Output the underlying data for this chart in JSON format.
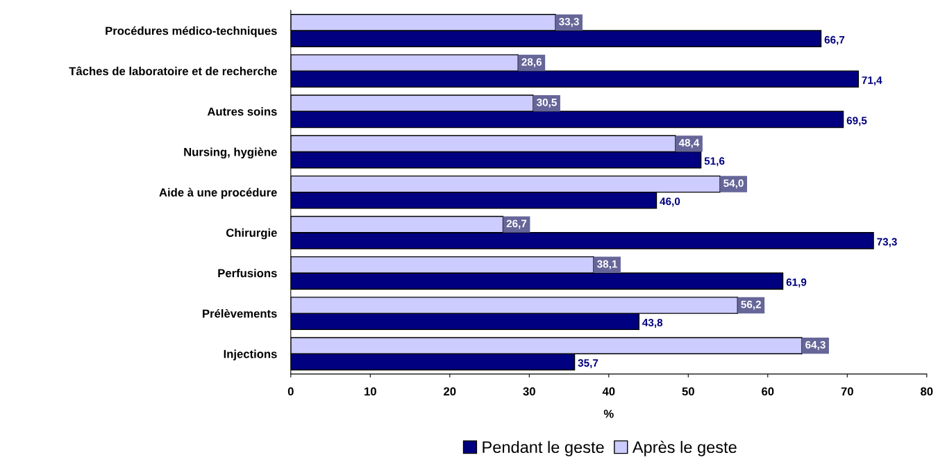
{
  "chart_data": {
    "type": "bar",
    "orientation": "horizontal",
    "xlabel": "%",
    "categories": [
      "Procédures médico-techniques",
      "Tâches de laboratoire et de recherche",
      "Autres soins",
      "Nursing, hygiène",
      "Aide à une procédure",
      "Chirurgie",
      "Perfusions",
      "Prélèvements",
      "Injections"
    ],
    "series": [
      {
        "name": "Pendant le geste",
        "color": "#000080",
        "values": [
          66.7,
          71.4,
          69.5,
          51.6,
          46.0,
          73.3,
          61.9,
          43.8,
          35.7
        ],
        "value_labels": [
          "66,7",
          "71,4",
          "69,5",
          "51,6",
          "46,0",
          "73,3",
          "61,9",
          "43,8",
          "35,7"
        ]
      },
      {
        "name": "Après le geste",
        "color": "#ccccff",
        "values": [
          33.3,
          28.6,
          30.5,
          48.4,
          54.0,
          26.7,
          38.1,
          56.2,
          64.3
        ],
        "value_labels": [
          "33,3",
          "28,6",
          "30,5",
          "48,4",
          "54,0",
          "26,7",
          "38,1",
          "56,2",
          "64,3"
        ]
      }
    ],
    "xlim": [
      0,
      80
    ],
    "xticks": [
      0,
      10,
      20,
      30,
      40,
      50,
      60,
      70,
      80
    ],
    "grid": false,
    "legend": "bottom"
  }
}
